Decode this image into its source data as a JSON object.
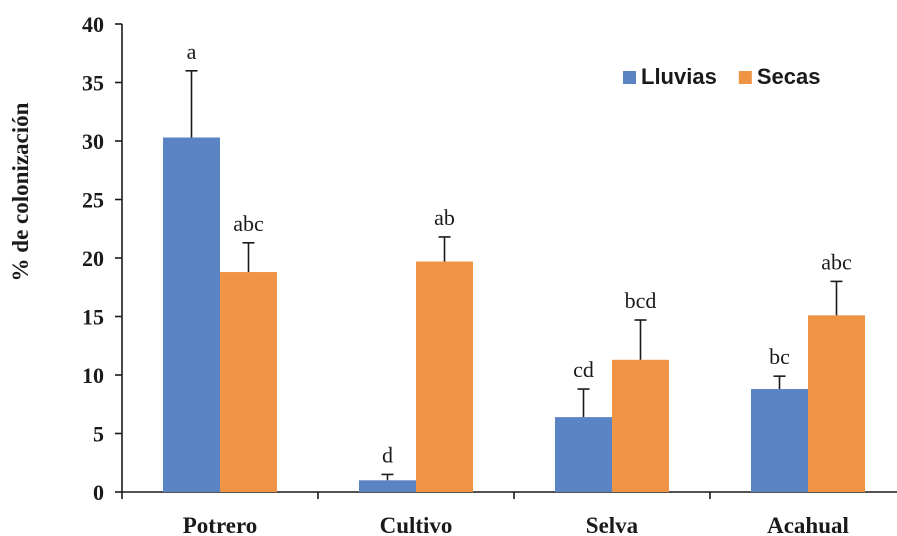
{
  "chart_data": {
    "type": "bar",
    "ylabel": "%  de colonización",
    "xlabel": "",
    "ylim": [
      0,
      40
    ],
    "yticks": [
      0,
      5,
      10,
      15,
      20,
      25,
      30,
      35,
      40
    ],
    "categories": [
      "Potrero",
      "Cultivo",
      "Selva",
      "Acahual"
    ],
    "series": [
      {
        "name": "Lluvias",
        "color": "#5b84c4",
        "values": [
          30.3,
          1.0,
          6.4,
          8.8
        ],
        "errors": [
          5.7,
          0.5,
          2.4,
          1.1
        ],
        "labels": [
          "a",
          "d",
          "cd",
          "bc"
        ]
      },
      {
        "name": "Secas",
        "color": "#ef9445",
        "values": [
          18.8,
          19.7,
          11.3,
          15.1
        ],
        "errors": [
          2.5,
          2.1,
          3.4,
          2.9
        ],
        "labels": [
          "abc",
          "ab",
          "bcd",
          "abc"
        ]
      }
    ],
    "legend_position": "top-right",
    "grid": false
  }
}
